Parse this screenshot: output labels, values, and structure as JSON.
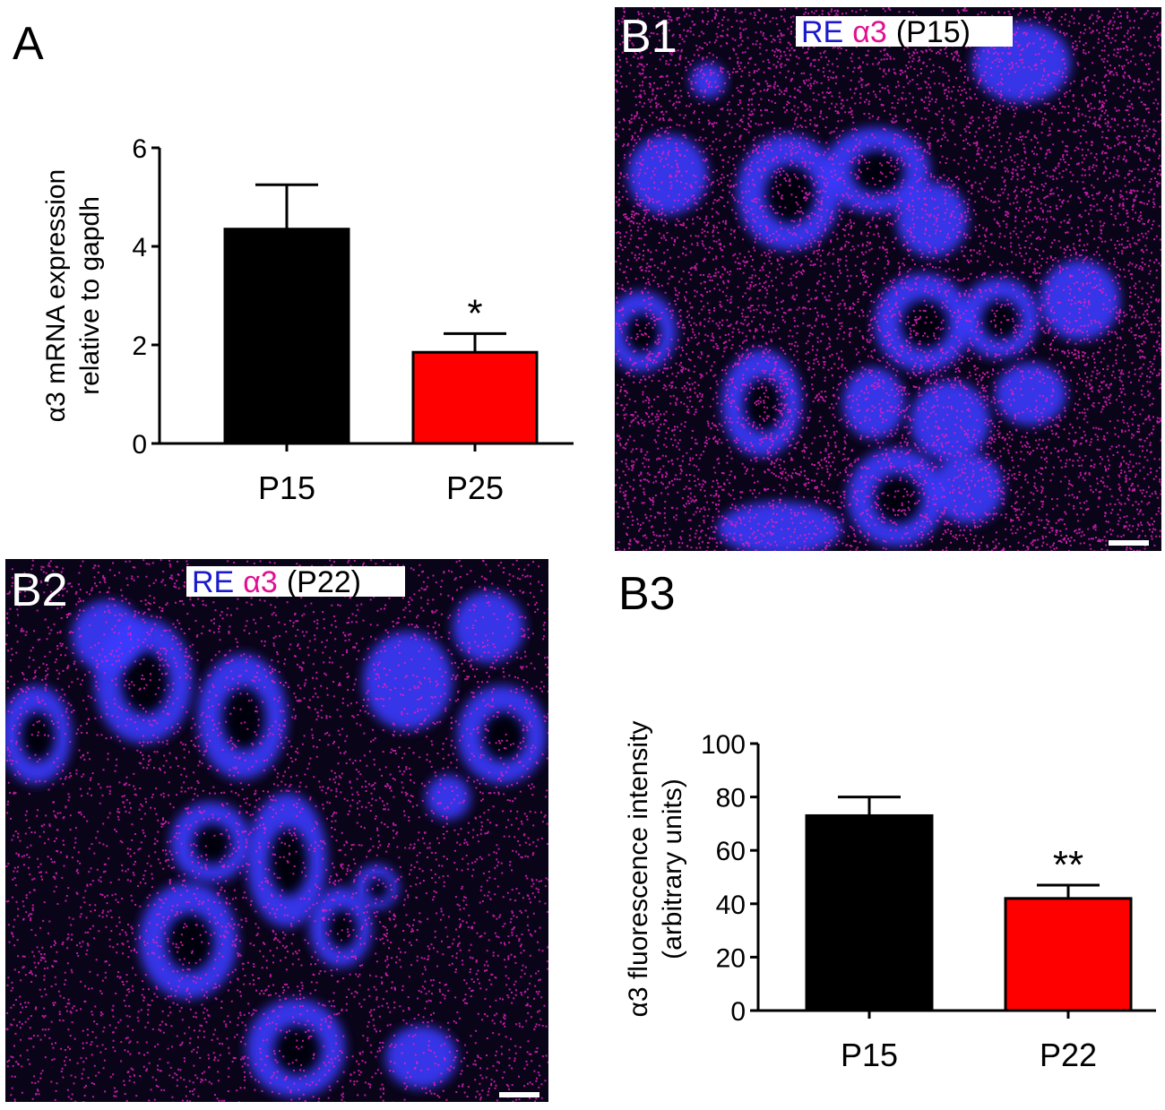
{
  "colors": {
    "bar_p15": "#000000",
    "bar_late": "#ff0000",
    "re_label": "#1a1acc",
    "a3_label": "#e0118f",
    "micrograph_bg": "#0a0418",
    "cell_blue": "#3a3aff",
    "dot_magenta": "#e020c0"
  },
  "panels": {
    "A": {
      "letter": "A"
    },
    "B1": {
      "letter": "B1",
      "label": {
        "marker1": "RE",
        "marker2": "α3",
        "age": "(P15)"
      }
    },
    "B2": {
      "letter": "B2",
      "label": {
        "marker1": "RE",
        "marker2": "α3",
        "age": "(P22)"
      }
    },
    "B3": {
      "letter": "B3"
    }
  },
  "chart_data": [
    {
      "panel": "A",
      "type": "bar",
      "title": "",
      "xlabel": "",
      "ylabel": [
        "α3 mRNA expression",
        "relative to gapdh"
      ],
      "categories": [
        "P15",
        "P25"
      ],
      "values": [
        4.35,
        1.85
      ],
      "errors": [
        0.9,
        0.38
      ],
      "significance": [
        "",
        "*"
      ],
      "ylim": [
        0,
        6
      ],
      "yticks": [
        0,
        2,
        4,
        6
      ],
      "grid": false,
      "bar_colors": [
        "#000000",
        "#ff0000"
      ]
    },
    {
      "panel": "B3",
      "type": "bar",
      "title": "",
      "xlabel": "",
      "ylabel": [
        "α3 fluorescence intensity",
        "(arbitrary units)"
      ],
      "categories": [
        "P15",
        "P22"
      ],
      "values": [
        73,
        42
      ],
      "errors": [
        7,
        5
      ],
      "significance": [
        "",
        "**"
      ],
      "ylim": [
        0,
        100
      ],
      "yticks": [
        0,
        20,
        40,
        60,
        80,
        100
      ],
      "grid": false,
      "bar_colors": [
        "#000000",
        "#ff0000"
      ]
    }
  ]
}
